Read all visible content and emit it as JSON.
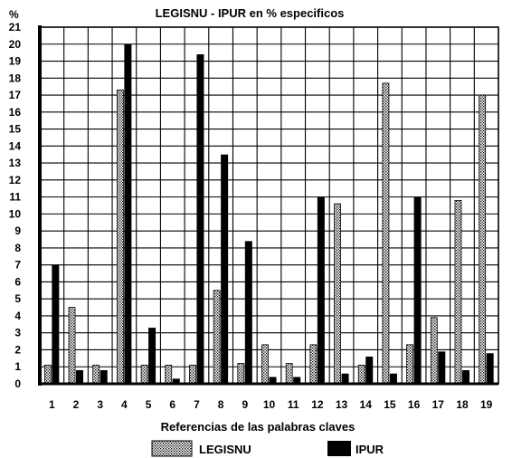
{
  "chart_data": {
    "type": "bar",
    "title": "LEGISNU - IPUR en % especificos",
    "xlabel": "Referencias de las palabras claves",
    "ylabel": "%",
    "ylim": [
      0,
      21
    ],
    "yticks": [
      0,
      1,
      2,
      3,
      4,
      5,
      6,
      7,
      8,
      9,
      10,
      11,
      12,
      13,
      14,
      15,
      16,
      17,
      18,
      19,
      20,
      21
    ],
    "categories": [
      "1",
      "2",
      "3",
      "4",
      "5",
      "6",
      "7",
      "8",
      "9",
      "10",
      "11",
      "12",
      "13",
      "14",
      "15",
      "16",
      "17",
      "18",
      "19"
    ],
    "series": [
      {
        "name": "LEGISNU",
        "pattern": "dotted",
        "color": "#ffffff",
        "values": [
          1.1,
          4.5,
          1.1,
          17.3,
          1.1,
          1.1,
          1.1,
          5.5,
          1.2,
          2.3,
          1.2,
          2.3,
          10.6,
          1.1,
          17.7,
          2.3,
          3.9,
          10.8,
          17.0
        ]
      },
      {
        "name": "IPUR",
        "pattern": "solid",
        "color": "#000000",
        "values": [
          7.0,
          0.8,
          0.8,
          20.0,
          3.3,
          0.3,
          19.4,
          13.5,
          8.4,
          0.4,
          0.4,
          11.0,
          0.6,
          1.6,
          0.6,
          11.0,
          1.9,
          0.8,
          1.8
        ]
      }
    ],
    "grid": true,
    "legend": "bottom"
  }
}
